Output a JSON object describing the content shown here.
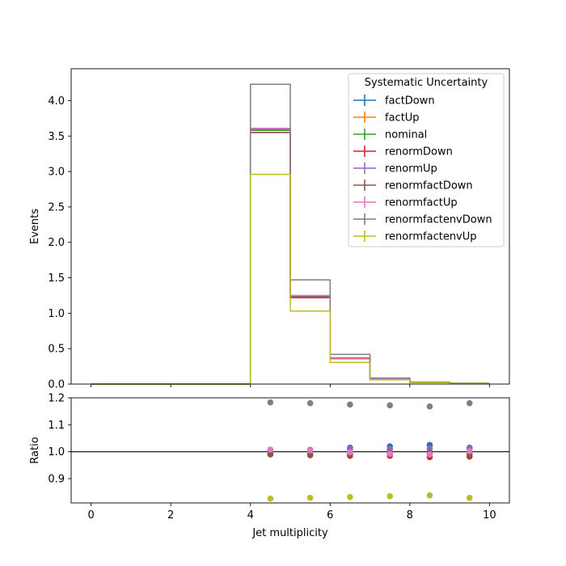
{
  "chart_data": [
    {
      "type": "step",
      "xlabel": "",
      "ylabel": "Events",
      "xlim": [
        -0.5,
        10.5
      ],
      "ylim": [
        0,
        4.45
      ],
      "xticks": [
        0,
        2,
        4,
        6,
        8,
        10
      ],
      "yticks": [
        0.0,
        0.5,
        1.0,
        1.5,
        2.0,
        2.5,
        3.0,
        3.5,
        4.0
      ],
      "ytick_labels": [
        "0.0",
        "0.5",
        "1.0",
        "1.5",
        "2.0",
        "2.5",
        "3.0",
        "3.5",
        "4.0"
      ],
      "bin_edges": [
        0,
        1,
        2,
        3,
        4,
        5,
        6,
        7,
        8,
        9,
        10
      ],
      "legend_title": "Systematic Uncertainty",
      "legend_position": "top-right",
      "series": [
        {
          "name": "factDown",
          "color": "#1f77b4",
          "values": [
            0,
            0,
            0,
            0,
            3.58,
            1.24,
            0.37,
            0.073,
            0.024,
            0.012
          ]
        },
        {
          "name": "factUp",
          "color": "#ff7f0e",
          "values": [
            0,
            0,
            0,
            0,
            3.59,
            1.24,
            0.36,
            0.072,
            0.023,
            0.012
          ]
        },
        {
          "name": "nominal",
          "color": "#2ca02c",
          "values": [
            0,
            0,
            0,
            0,
            3.58,
            1.24,
            0.365,
            0.072,
            0.024,
            0.012
          ]
        },
        {
          "name": "renormDown",
          "color": "#d62728",
          "values": [
            0,
            0,
            0,
            0,
            3.55,
            1.22,
            0.36,
            0.071,
            0.023,
            0.012
          ]
        },
        {
          "name": "renormUp",
          "color": "#9467bd",
          "values": [
            0,
            0,
            0,
            0,
            3.6,
            1.25,
            0.37,
            0.073,
            0.024,
            0.012
          ]
        },
        {
          "name": "renormfactDown",
          "color": "#8c564b",
          "values": [
            0,
            0,
            0,
            0,
            3.55,
            1.23,
            0.37,
            0.073,
            0.024,
            0.012
          ]
        },
        {
          "name": "renormfactUp",
          "color": "#e377c2",
          "values": [
            0,
            0,
            0,
            0,
            3.61,
            1.25,
            0.365,
            0.072,
            0.024,
            0.012
          ]
        },
        {
          "name": "renormfactenvDown",
          "color": "#7f7f7f",
          "values": [
            0,
            0,
            0,
            0,
            4.23,
            1.47,
            0.42,
            0.085,
            0.028,
            0.014
          ]
        },
        {
          "name": "renormfactenvUp",
          "color": "#bcbd22",
          "values": [
            0,
            0,
            0,
            0,
            2.96,
            1.03,
            0.305,
            0.06,
            0.02,
            0.01
          ]
        }
      ]
    },
    {
      "type": "scatter",
      "xlabel": "Jet multiplicity",
      "ylabel": "Ratio",
      "xlim": [
        -0.5,
        10.5
      ],
      "ylim": [
        0.81,
        1.2
      ],
      "xticks": [
        0,
        2,
        4,
        6,
        8,
        10
      ],
      "yticks": [
        0.9,
        1.0,
        1.1,
        1.2
      ],
      "ytick_labels": [
        "0.9",
        "1.0",
        "1.1",
        "1.2"
      ],
      "reference_line": 1.0,
      "x": [
        4.5,
        5.5,
        6.5,
        7.5,
        8.5,
        9.5
      ],
      "series": [
        {
          "name": "factDown",
          "color": "#1f77b4",
          "values": [
            1.0,
            1.003,
            1.015,
            1.02,
            1.025,
            1.015
          ]
        },
        {
          "name": "factUp",
          "color": "#ff7f0e",
          "values": [
            1.002,
            1.0,
            0.995,
            0.995,
            0.99,
            0.995
          ]
        },
        {
          "name": "nominal",
          "color": "#2ca02c",
          "values": [
            1.0,
            1.0,
            1.0,
            1.0,
            1.0,
            1.0
          ]
        },
        {
          "name": "renormDown",
          "color": "#d62728",
          "values": [
            0.99,
            0.987,
            0.985,
            0.985,
            0.98,
            0.982
          ]
        },
        {
          "name": "renormUp",
          "color": "#9467bd",
          "values": [
            1.005,
            1.007,
            1.01,
            1.01,
            1.012,
            1.012
          ]
        },
        {
          "name": "renormfactDown",
          "color": "#8c564b",
          "values": [
            0.99,
            0.99,
            0.99,
            0.995,
            0.995,
            0.99
          ]
        },
        {
          "name": "renormfactUp",
          "color": "#e377c2",
          "values": [
            1.008,
            1.005,
            0.998,
            0.992,
            0.99,
            1.002
          ]
        },
        {
          "name": "renormfactenvDown",
          "color": "#7f7f7f",
          "values": [
            1.183,
            1.18,
            1.175,
            1.172,
            1.168,
            1.18
          ]
        },
        {
          "name": "renormfactenvUp",
          "color": "#bcbd22",
          "values": [
            0.826,
            0.829,
            0.832,
            0.835,
            0.838,
            0.829
          ]
        }
      ]
    }
  ]
}
